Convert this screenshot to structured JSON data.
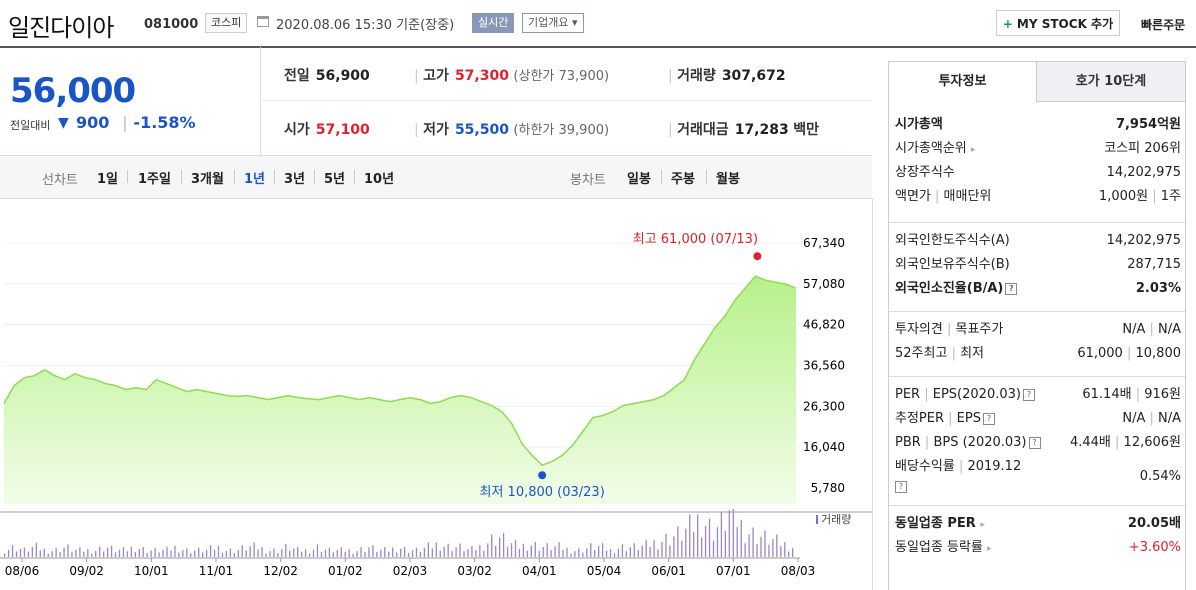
{
  "header": {
    "name": "일진다이아",
    "code": "081000",
    "market": "코스피",
    "date": "2020.08.06 15:30",
    "date_suffix": "기준(장중)",
    "realtime": "실시간",
    "overview": "기업개요",
    "mystock": "MY STOCK 추가",
    "quick": "빠른주문"
  },
  "price": {
    "current": "56,000",
    "prev_label": "전일대비",
    "change": "900",
    "change_pct": "-1.58%"
  },
  "quote": {
    "prev_close_label": "전일",
    "prev_close": "56,900",
    "high_label": "고가",
    "high": "57,300",
    "upper_limit": "(상한가 73,900)",
    "volume_label": "거래량",
    "volume": "307,672",
    "open_label": "시가",
    "open": "57,100",
    "low_label": "저가",
    "low": "55,500",
    "lower_limit": "(하한가 39,900)",
    "amount_label": "거래대금",
    "amount": "17,283",
    "amount_unit": "백만"
  },
  "period": {
    "line_title": "선차트",
    "line_opts": [
      "1일",
      "1주일",
      "3개월",
      "1년",
      "3년",
      "5년",
      "10년"
    ],
    "selected": "1년",
    "candle_title": "봉차트",
    "candle_opts": [
      "일봉",
      "주봉",
      "월봉"
    ]
  },
  "chart_data": {
    "type": "area",
    "y_ticks": [
      "67,340",
      "57,080",
      "46,820",
      "36,560",
      "26,300",
      "16,040",
      "5,780"
    ],
    "ylim": [
      5780,
      67340
    ],
    "x_ticks": [
      "08/06",
      "09/02",
      "10/01",
      "11/01",
      "12/02",
      "01/02",
      "02/03",
      "03/02",
      "04/01",
      "05/04",
      "06/01",
      "07/01",
      "08/03"
    ],
    "max_label": "최고 61,000 (07/13)",
    "min_label": "최저 10,800 (03/23)",
    "volume_label": "거래량",
    "series": [
      {
        "values": [
          27000,
          31500,
          33500,
          34000,
          35500,
          34000,
          33000,
          34500,
          33500,
          33000,
          32000,
          31500,
          30500,
          31000,
          30500,
          33000,
          32000,
          31000,
          30000,
          30500,
          30000,
          29500,
          29000,
          28800,
          29000,
          28500,
          28000,
          28500,
          29000,
          28500,
          28200,
          28000,
          28500,
          29000,
          28500,
          28000,
          28500,
          28000,
          27500,
          28000,
          28500,
          28000,
          27000,
          27500,
          28500,
          29000,
          28500,
          27500,
          26500,
          25000,
          22000,
          17000,
          14000,
          11500,
          12500,
          14000,
          16500,
          20000,
          23500,
          24000,
          25000,
          26500,
          27000,
          27500,
          28000,
          29000,
          31000,
          33000,
          38000,
          42000,
          46000,
          49000,
          53000,
          56000,
          59000,
          58000,
          57500,
          57000,
          56000
        ]
      },
      {
        "name": "거래량",
        "values": [
          2,
          3,
          2,
          3,
          2,
          2,
          3,
          2,
          2,
          2,
          3,
          2,
          2,
          3,
          2,
          2,
          2,
          3,
          2,
          2,
          2,
          3,
          2,
          2,
          3,
          3,
          2,
          2,
          3,
          2,
          2,
          3,
          2,
          2,
          2,
          2,
          3,
          2,
          2,
          3,
          2,
          2,
          3,
          4,
          3,
          3,
          2,
          3,
          5,
          6,
          4,
          3,
          4,
          3,
          3,
          3,
          2,
          2,
          3,
          3,
          2,
          3,
          3,
          3,
          4,
          5,
          6,
          7,
          9,
          12,
          8,
          10,
          14,
          9,
          7,
          6,
          5,
          4,
          3
        ]
      }
    ]
  },
  "invest": {
    "tab1": "투자정보",
    "tab2": "호가 10단계",
    "s1": [
      {
        "k": "시가총액",
        "v": "7,954억원",
        "bold": true
      },
      {
        "k": "시가총액순위",
        "v": "코스피 206위",
        "arrow": true
      },
      {
        "k": "상장주식수",
        "v": "14,202,975"
      },
      {
        "k": "액면가",
        "k2": "매매단위",
        "v": "1,000원",
        "v2": "1주"
      }
    ],
    "s2": [
      {
        "k": "외국인한도주식수(A)",
        "v": "14,202,975"
      },
      {
        "k": "외국인보유주식수(B)",
        "v": "287,715"
      },
      {
        "k": "외국인소진율(B/A)",
        "v": "2.03%",
        "bold": true,
        "q": true
      }
    ],
    "s3": [
      {
        "k": "투자의견",
        "k2": "목표주가",
        "v": "N/A",
        "v2": "N/A"
      },
      {
        "k": "52주최고",
        "k2": "최저",
        "v": "61,000",
        "v2": "10,800"
      }
    ],
    "s4": [
      {
        "k": "PER",
        "k2": "EPS(2020.03)",
        "v": "61.14배",
        "v2": "916원",
        "q": true
      },
      {
        "k": "추정PER",
        "k2": "EPS",
        "v": "N/A",
        "v2": "N/A",
        "q": true
      },
      {
        "k": "PBR",
        "k2": "BPS (2020.03)",
        "v": "4.44배",
        "v2": "12,606원",
        "q": true
      },
      {
        "k": "배당수익률",
        "k2": "2019.12",
        "v": "0.54%",
        "q2": true
      }
    ],
    "s5": [
      {
        "k": "동일업종 PER",
        "v": "20.05배",
        "bold": true,
        "arrow": true
      },
      {
        "k": "동일업종 등락률",
        "v": "+3.60%",
        "arrow": true,
        "red": true
      }
    ]
  }
}
